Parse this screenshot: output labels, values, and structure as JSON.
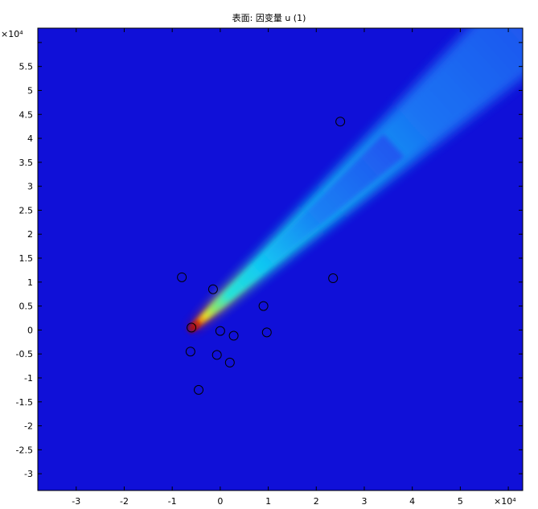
{
  "chart_data": {
    "type": "heatmap",
    "title": "表面: 因变量 u (1)",
    "xlabel": "",
    "ylabel": "",
    "x_multiplier": "×10⁴",
    "y_multiplier": "×10⁴",
    "xlim": [
      -3.8,
      6.3
    ],
    "ylim": [
      -3.35,
      6.3
    ],
    "x_ticks": [
      -3,
      -2,
      -1,
      0,
      1,
      2,
      3,
      4,
      5,
      6
    ],
    "x_tick_labels": [
      "-3",
      "-2",
      "-1",
      "0",
      "1",
      "2",
      "3",
      "4",
      "5",
      ""
    ],
    "y_ticks": [
      -3,
      -2.5,
      -2,
      -1.5,
      -1,
      -0.5,
      0,
      0.5,
      1,
      1.5,
      2,
      2.5,
      3,
      3.5,
      4,
      4.5,
      5,
      5.5,
      6
    ],
    "y_tick_labels": [
      "-3",
      "-2.5",
      "-2",
      "-1.5",
      "-1",
      "-0.5",
      "0",
      "0.5",
      "1",
      "1.5",
      "2",
      "2.5",
      "3",
      "3.5",
      "4",
      "4.5",
      "5",
      "5.5",
      ""
    ],
    "colormap": "rainbow",
    "background_color": "#1010d8",
    "plume": {
      "source": [
        -0.58,
        0.04
      ],
      "direction_end": [
        6.3,
        6.3
      ]
    },
    "circle_markers": [
      {
        "x": -0.8,
        "y": 1.1
      },
      {
        "x": -0.15,
        "y": 0.85
      },
      {
        "x": -0.6,
        "y": 0.05
      },
      {
        "x": 0.0,
        "y": -0.02
      },
      {
        "x": 0.28,
        "y": -0.12
      },
      {
        "x": 0.9,
        "y": 0.5
      },
      {
        "x": 0.97,
        "y": -0.05
      },
      {
        "x": -0.62,
        "y": -0.45
      },
      {
        "x": -0.07,
        "y": -0.52
      },
      {
        "x": 0.2,
        "y": -0.68
      },
      {
        "x": -0.45,
        "y": -1.25
      },
      {
        "x": 2.35,
        "y": 1.08
      },
      {
        "x": 2.5,
        "y": 4.35
      }
    ],
    "grid": false
  }
}
